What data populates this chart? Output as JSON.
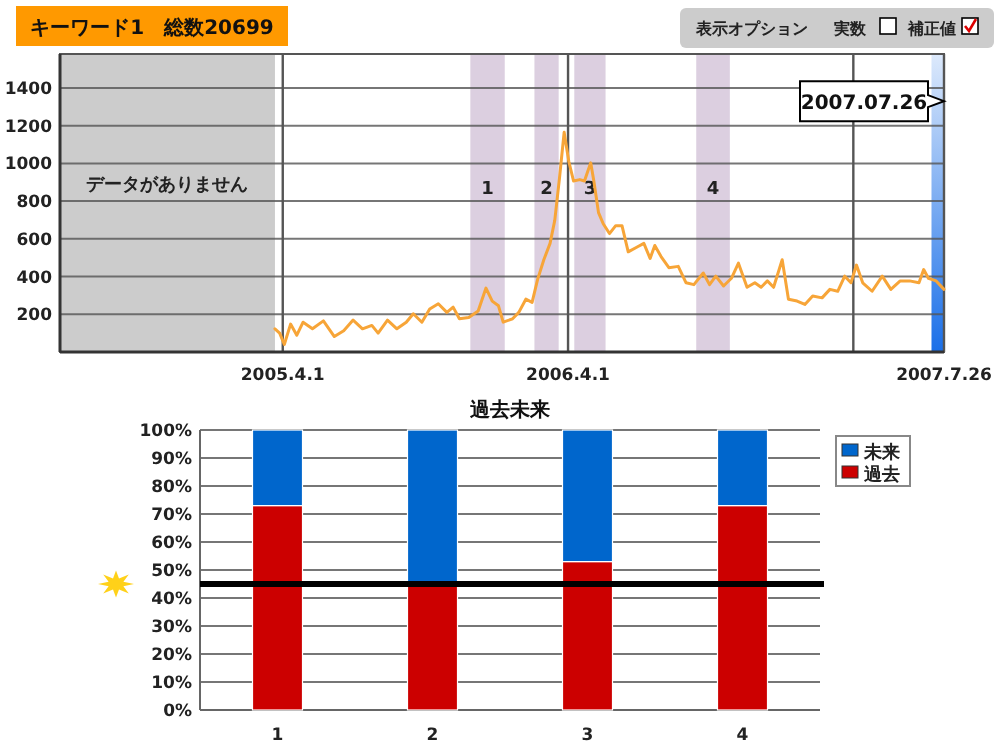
{
  "chart_data": [
    {
      "type": "line",
      "title": "キーワード1　総数20699",
      "annotations": [
        "表示オプション",
        "実数",
        "補正値",
        {
          "text": "2007.07.26",
          "x": "2007-07-26",
          "y": 1330
        }
      ],
      "xlim": [
        "2004-06-20",
        "2007-07-26"
      ],
      "xticks": [
        {
          "value": "2005-04-01",
          "label": "2005.4.1"
        },
        {
          "value": "2006-04-01",
          "label": "2006.4.1"
        },
        {
          "value": "2007-04-01",
          "label": null
        },
        {
          "value": "2007-07-26",
          "label": "2007.7.26"
        }
      ],
      "ylim": [
        0,
        1580
      ],
      "yticks": [
        200,
        400,
        600,
        800,
        1000,
        1200,
        1400
      ],
      "grid": true,
      "bands": [
        {
          "axis": "x",
          "from": "2004-06-20",
          "to": "2005-03-22",
          "label": "データがありません",
          "color": "#cccccc"
        },
        {
          "axis": "x",
          "from": "2005-11-27",
          "to": "2006-01-10",
          "label": "1",
          "color": "#dccfe0"
        },
        {
          "axis": "x",
          "from": "2006-02-17",
          "to": "2006-03-20",
          "label": "2",
          "color": "#dccfe0"
        },
        {
          "axis": "x",
          "from": "2006-04-09",
          "to": "2006-05-19",
          "label": "3",
          "color": "#dccfe0"
        },
        {
          "axis": "x",
          "from": "2006-09-12",
          "to": "2006-10-25",
          "label": "4",
          "color": "#dccfe0"
        },
        {
          "axis": "x",
          "from": "2007-07-10",
          "to": "2007-07-26",
          "color": "#1a6fe8"
        }
      ],
      "series": [
        {
          "color": "#f7a538",
          "x": [
            "2005-03-22",
            "2005-03-28",
            "2005-04-03",
            "2005-04-11",
            "2005-04-19",
            "2005-04-27",
            "2005-05-09",
            "2005-05-23",
            "2005-06-06",
            "2005-06-18",
            "2005-06-30",
            "2005-07-12",
            "2005-07-24",
            "2005-08-01",
            "2005-08-13",
            "2005-08-25",
            "2005-09-06",
            "2005-09-15",
            "2005-09-26",
            "2005-10-06",
            "2005-10-17",
            "2005-10-28",
            "2005-11-05",
            "2005-11-13",
            "2005-11-25",
            "2005-12-07",
            "2005-12-17",
            "2005-12-25",
            "2006-01-02",
            "2006-01-08",
            "2006-01-20",
            "2006-01-28",
            "2006-02-06",
            "2006-02-14",
            "2006-02-21",
            "2006-03-01",
            "2006-03-09",
            "2006-03-15",
            "2006-03-21",
            "2006-03-27",
            "2006-04-02",
            "2006-04-08",
            "2006-04-16",
            "2006-04-22",
            "2006-04-30",
            "2006-05-04",
            "2006-05-10",
            "2006-05-16",
            "2006-05-24",
            "2006-06-01",
            "2006-06-09",
            "2006-06-17",
            "2006-06-29",
            "2006-07-07",
            "2006-07-15",
            "2006-07-21",
            "2006-07-29",
            "2006-08-08",
            "2006-08-20",
            "2006-08-30",
            "2006-09-09",
            "2006-09-21",
            "2006-09-29",
            "2006-10-07",
            "2006-10-17",
            "2006-10-27",
            "2006-11-05",
            "2006-11-16",
            "2006-11-26",
            "2006-12-04",
            "2006-12-12",
            "2006-12-20",
            "2006-12-31",
            "2007-01-08",
            "2007-01-19",
            "2007-01-29",
            "2007-02-08",
            "2007-02-20",
            "2007-03-02",
            "2007-03-12",
            "2007-03-21",
            "2007-03-29",
            "2007-04-05",
            "2007-04-13",
            "2007-04-25",
            "2007-05-08",
            "2007-05-19",
            "2007-05-31",
            "2007-06-12",
            "2007-06-24",
            "2007-06-30",
            "2007-07-06",
            "2007-07-16",
            "2007-07-26"
          ],
          "values": [
            123,
            100,
            40,
            148,
            89,
            158,
            123,
            165,
            82,
            113,
            169,
            123,
            141,
            100,
            169,
            123,
            158,
            203,
            158,
            228,
            256,
            210,
            238,
            176,
            183,
            217,
            339,
            270,
            245,
            158,
            176,
            210,
            280,
            263,
            384,
            489,
            576,
            698,
            920,
            1165,
            1010,
            907,
            914,
            907,
            1003,
            906,
            739,
            680,
            628,
            670,
            670,
            531,
            558,
            576,
            496,
            565,
            506,
            447,
            454,
            367,
            357,
            419,
            357,
            402,
            350,
            391,
            471,
            343,
            367,
            343,
            377,
            343,
            489,
            280,
            270,
            252,
            297,
            287,
            332,
            322,
            402,
            367,
            461,
            367,
            322,
            402,
            332,
            377,
            377,
            367,
            437,
            391,
            377,
            332
          ]
        }
      ]
    },
    {
      "type": "bar",
      "title": "過去未来",
      "stacked": true,
      "categories": [
        "1",
        "2",
        "3",
        "4"
      ],
      "series": [
        {
          "name": "過去",
          "color": "#cc0000",
          "values": [
            73,
            45,
            53,
            73
          ]
        },
        {
          "name": "未来",
          "color": "#0066cc",
          "values": [
            27,
            55,
            47,
            27
          ]
        }
      ],
      "ylim": [
        0,
        100
      ],
      "yticks": [
        {
          "value": 0,
          "label": "0%"
        },
        {
          "value": 10,
          "label": "10%"
        },
        {
          "value": 20,
          "label": "20%"
        },
        {
          "value": 30,
          "label": "30%"
        },
        {
          "value": 40,
          "label": "40%"
        },
        {
          "value": 50,
          "label": "50%"
        },
        {
          "value": 60,
          "label": "60%"
        },
        {
          "value": 70,
          "label": "70%"
        },
        {
          "value": 80,
          "label": "80%"
        },
        {
          "value": 90,
          "label": "90%"
        },
        {
          "value": 100,
          "label": "100%"
        }
      ],
      "grid": "y",
      "legend": "top right",
      "ref_lines": [
        {
          "axis": "y",
          "value": 45,
          "color": "#000000"
        }
      ]
    }
  ]
}
